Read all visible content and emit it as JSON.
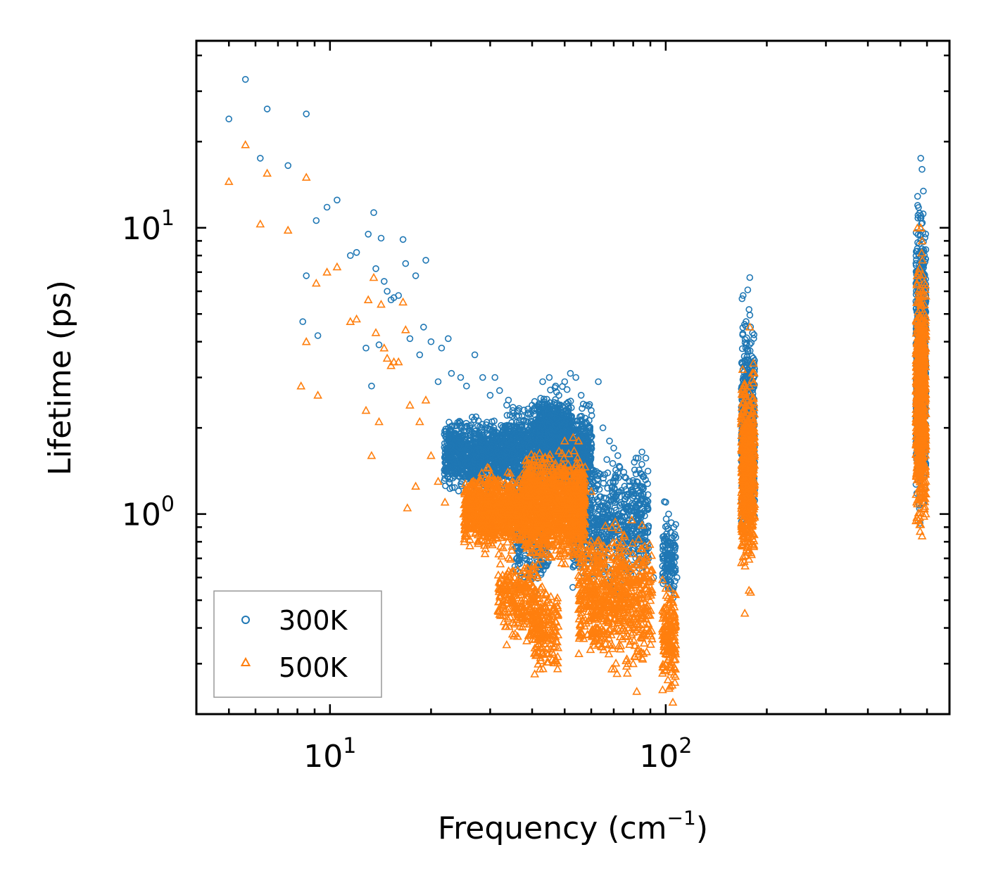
{
  "chart_data": {
    "type": "scatter",
    "title": "",
    "xlabel": "Frequency (cm",
    "xlabel_sup": "−1",
    "xlabel_suffix": ")",
    "ylabel": "Lifetime (ps)",
    "xscale": "log",
    "yscale": "log",
    "xlim": [
      4,
      700
    ],
    "ylim": [
      0.2,
      45
    ],
    "x_ticks": [
      {
        "value": 10,
        "base": "10",
        "exp": "1"
      },
      {
        "value": 100,
        "base": "10",
        "exp": "2"
      }
    ],
    "y_ticks": [
      {
        "value": 1,
        "base": "10",
        "exp": "0"
      },
      {
        "value": 10,
        "base": "10",
        "exp": "1"
      }
    ],
    "legend_position": "bottom-left",
    "colors": {
      "s300": "#1f77b4",
      "s500": "#ff7f0e"
    },
    "series": [
      {
        "name": "300K",
        "marker": "circle",
        "color": "#1f77b4",
        "points": [
          [
            5.0,
            24
          ],
          [
            5.6,
            33
          ],
          [
            6.2,
            17.5
          ],
          [
            6.5,
            26
          ],
          [
            7.5,
            16.5
          ],
          [
            8.3,
            4.7
          ],
          [
            8.5,
            25
          ],
          [
            8.5,
            6.8
          ],
          [
            9.1,
            10.6
          ],
          [
            9.2,
            4.2
          ],
          [
            9.8,
            11.8
          ],
          [
            10.5,
            12.5
          ],
          [
            11.5,
            8.0
          ],
          [
            12.0,
            8.2
          ],
          [
            12.8,
            3.8
          ],
          [
            13.0,
            9.5
          ],
          [
            13.3,
            2.8
          ],
          [
            13.5,
            11.3
          ],
          [
            13.7,
            7.2
          ],
          [
            14.0,
            3.9
          ],
          [
            14.2,
            9.2
          ],
          [
            14.5,
            6.5
          ],
          [
            14.8,
            6.0
          ],
          [
            15.2,
            5.6
          ],
          [
            15.5,
            5.7
          ],
          [
            16.0,
            5.8
          ],
          [
            16.5,
            9.1
          ],
          [
            16.8,
            7.5
          ],
          [
            17.3,
            4.1
          ],
          [
            18.0,
            6.8
          ],
          [
            18.5,
            3.6
          ],
          [
            19.0,
            4.5
          ],
          [
            19.3,
            7.7
          ],
          [
            20.0,
            4.0
          ],
          [
            21.0,
            2.9
          ],
          [
            21.5,
            3.8
          ],
          [
            22.5,
            4.1
          ],
          [
            23.0,
            3.1
          ],
          [
            24.5,
            3.0
          ],
          [
            25.5,
            2.8
          ],
          [
            27.0,
            3.6
          ],
          [
            28.5,
            3.0
          ],
          [
            30.0,
            2.6
          ],
          [
            31.0,
            3.0
          ],
          [
            32.0,
            2.7
          ],
          [
            34.0,
            2.5
          ],
          [
            35.0,
            2.3
          ],
          [
            40.0,
            2.4
          ],
          [
            43.0,
            2.9
          ],
          [
            45.0,
            3.0
          ],
          [
            47.0,
            2.8
          ],
          [
            50.0,
            2.9
          ],
          [
            52.0,
            3.1
          ],
          [
            54.0,
            3.0
          ],
          [
            56.0,
            2.6
          ],
          [
            58.0,
            2.4
          ],
          [
            60.0,
            2.3
          ],
          [
            63.0,
            2.9
          ],
          [
            65.0,
            2.0
          ],
          [
            68.0,
            1.8
          ],
          [
            70.0,
            1.7
          ],
          [
            72.0,
            1.6
          ],
          [
            75.0,
            1.4
          ],
          [
            78.0,
            1.3
          ],
          [
            80.0,
            1.2
          ],
          [
            85.0,
            1.0
          ],
          [
            88.0,
            0.8
          ],
          [
            92.0,
            0.6
          ],
          [
            100.0,
            1.1
          ],
          [
            102.0,
            1.0
          ],
          [
            105.0,
            0.7
          ],
          [
            108.0,
            0.6
          ],
          [
            170.0,
            5.8
          ],
          [
            178.0,
            6.7
          ],
          [
            575.0,
            17.5
          ],
          [
            580.0,
            16
          ]
        ],
        "clusters": [
          {
            "xlog": [
              1.34,
              1.52
            ],
            "ylog": [
              0.05,
              0.36
            ],
            "n": 900
          },
          {
            "xlog": [
              1.52,
              1.78
            ],
            "ylog": [
              0.02,
              0.42
            ],
            "n": 1400
          },
          {
            "xlog": [
              1.62,
              1.72
            ],
            "ylog": [
              0.1,
              0.47
            ],
            "n": 500
          },
          {
            "xlog": [
              1.72,
              1.95
            ],
            "ylog": [
              -0.3,
              0.25
            ],
            "n": 700
          },
          {
            "xlog": [
              1.55,
              1.65
            ],
            "ylog": [
              -0.3,
              0.05
            ],
            "n": 160
          },
          {
            "xlog": [
              1.99,
              2.03
            ],
            "ylog": [
              -0.35,
              0.05
            ],
            "n": 140
          },
          {
            "xlog": [
              2.225,
              2.265
            ],
            "ylog": [
              -0.15,
              0.8
            ],
            "n": 500
          },
          {
            "xlog": [
              2.745,
              2.775
            ],
            "ylog": [
              -0.1,
              1.2
            ],
            "n": 650
          }
        ]
      },
      {
        "name": "500K",
        "marker": "triangle",
        "color": "#ff7f0e",
        "points": [
          [
            5.0,
            14.5
          ],
          [
            5.6,
            19.5
          ],
          [
            6.2,
            10.3
          ],
          [
            6.5,
            15.5
          ],
          [
            7.5,
            9.8
          ],
          [
            8.2,
            2.8
          ],
          [
            8.5,
            15
          ],
          [
            8.5,
            4.0
          ],
          [
            9.1,
            6.4
          ],
          [
            9.2,
            2.6
          ],
          [
            9.8,
            7.0
          ],
          [
            10.5,
            7.3
          ],
          [
            11.5,
            4.7
          ],
          [
            12.0,
            4.8
          ],
          [
            12.8,
            2.3
          ],
          [
            13.0,
            5.6
          ],
          [
            13.3,
            1.6
          ],
          [
            13.5,
            6.7
          ],
          [
            13.7,
            4.3
          ],
          [
            14.0,
            2.1
          ],
          [
            14.2,
            5.4
          ],
          [
            14.5,
            3.8
          ],
          [
            14.8,
            3.5
          ],
          [
            15.2,
            3.3
          ],
          [
            15.5,
            3.4
          ],
          [
            16.0,
            3.4
          ],
          [
            16.5,
            5.5
          ],
          [
            16.8,
            4.4
          ],
          [
            17.0,
            1.05
          ],
          [
            17.3,
            2.4
          ],
          [
            18.0,
            1.25
          ],
          [
            18.5,
            2.1
          ],
          [
            19.3,
            2.5
          ],
          [
            20.0,
            1.6
          ],
          [
            21.0,
            1.3
          ],
          [
            22.0,
            1.1
          ],
          [
            25.0,
            1.0
          ],
          [
            30.0,
            0.85
          ],
          [
            35.0,
            0.55
          ],
          [
            40.0,
            0.45
          ],
          [
            42.0,
            0.4
          ],
          [
            50.0,
            1.8
          ],
          [
            53.0,
            1.85
          ],
          [
            55.0,
            1.8
          ],
          [
            60.0,
            1.2
          ],
          [
            65.0,
            0.7
          ],
          [
            70.0,
            0.45
          ],
          [
            78.0,
            0.35
          ],
          [
            80.0,
            0.3
          ],
          [
            82.0,
            0.24
          ],
          [
            100.0,
            0.55
          ],
          [
            103.0,
            0.25
          ],
          [
            105.0,
            0.22
          ],
          [
            172.0,
            0.45
          ],
          [
            178.0,
            4.5
          ],
          [
            575.0,
            10
          ],
          [
            580.0,
            9
          ]
        ],
        "clusters": [
          {
            "xlog": [
              1.4,
              1.58
            ],
            "ylog": [
              -0.15,
              0.18
            ],
            "n": 900
          },
          {
            "xlog": [
              1.58,
              1.76
            ],
            "ylog": [
              -0.2,
              0.26
            ],
            "n": 1200
          },
          {
            "xlog": [
              1.5,
              1.62
            ],
            "ylog": [
              -0.5,
              -0.1
            ],
            "n": 250
          },
          {
            "xlog": [
              1.6,
              1.68
            ],
            "ylog": [
              -0.6,
              -0.2
            ],
            "n": 180
          },
          {
            "xlog": [
              1.74,
              1.96
            ],
            "ylog": [
              -0.6,
              0.02
            ],
            "n": 700
          },
          {
            "xlog": [
              1.99,
              2.03
            ],
            "ylog": [
              -0.65,
              -0.2
            ],
            "n": 160
          },
          {
            "xlog": [
              2.225,
              2.265
            ],
            "ylog": [
              -0.3,
              0.58
            ],
            "n": 520
          },
          {
            "xlog": [
              2.745,
              2.775
            ],
            "ylog": [
              -0.18,
              1.02
            ],
            "n": 650
          }
        ]
      }
    ]
  }
}
